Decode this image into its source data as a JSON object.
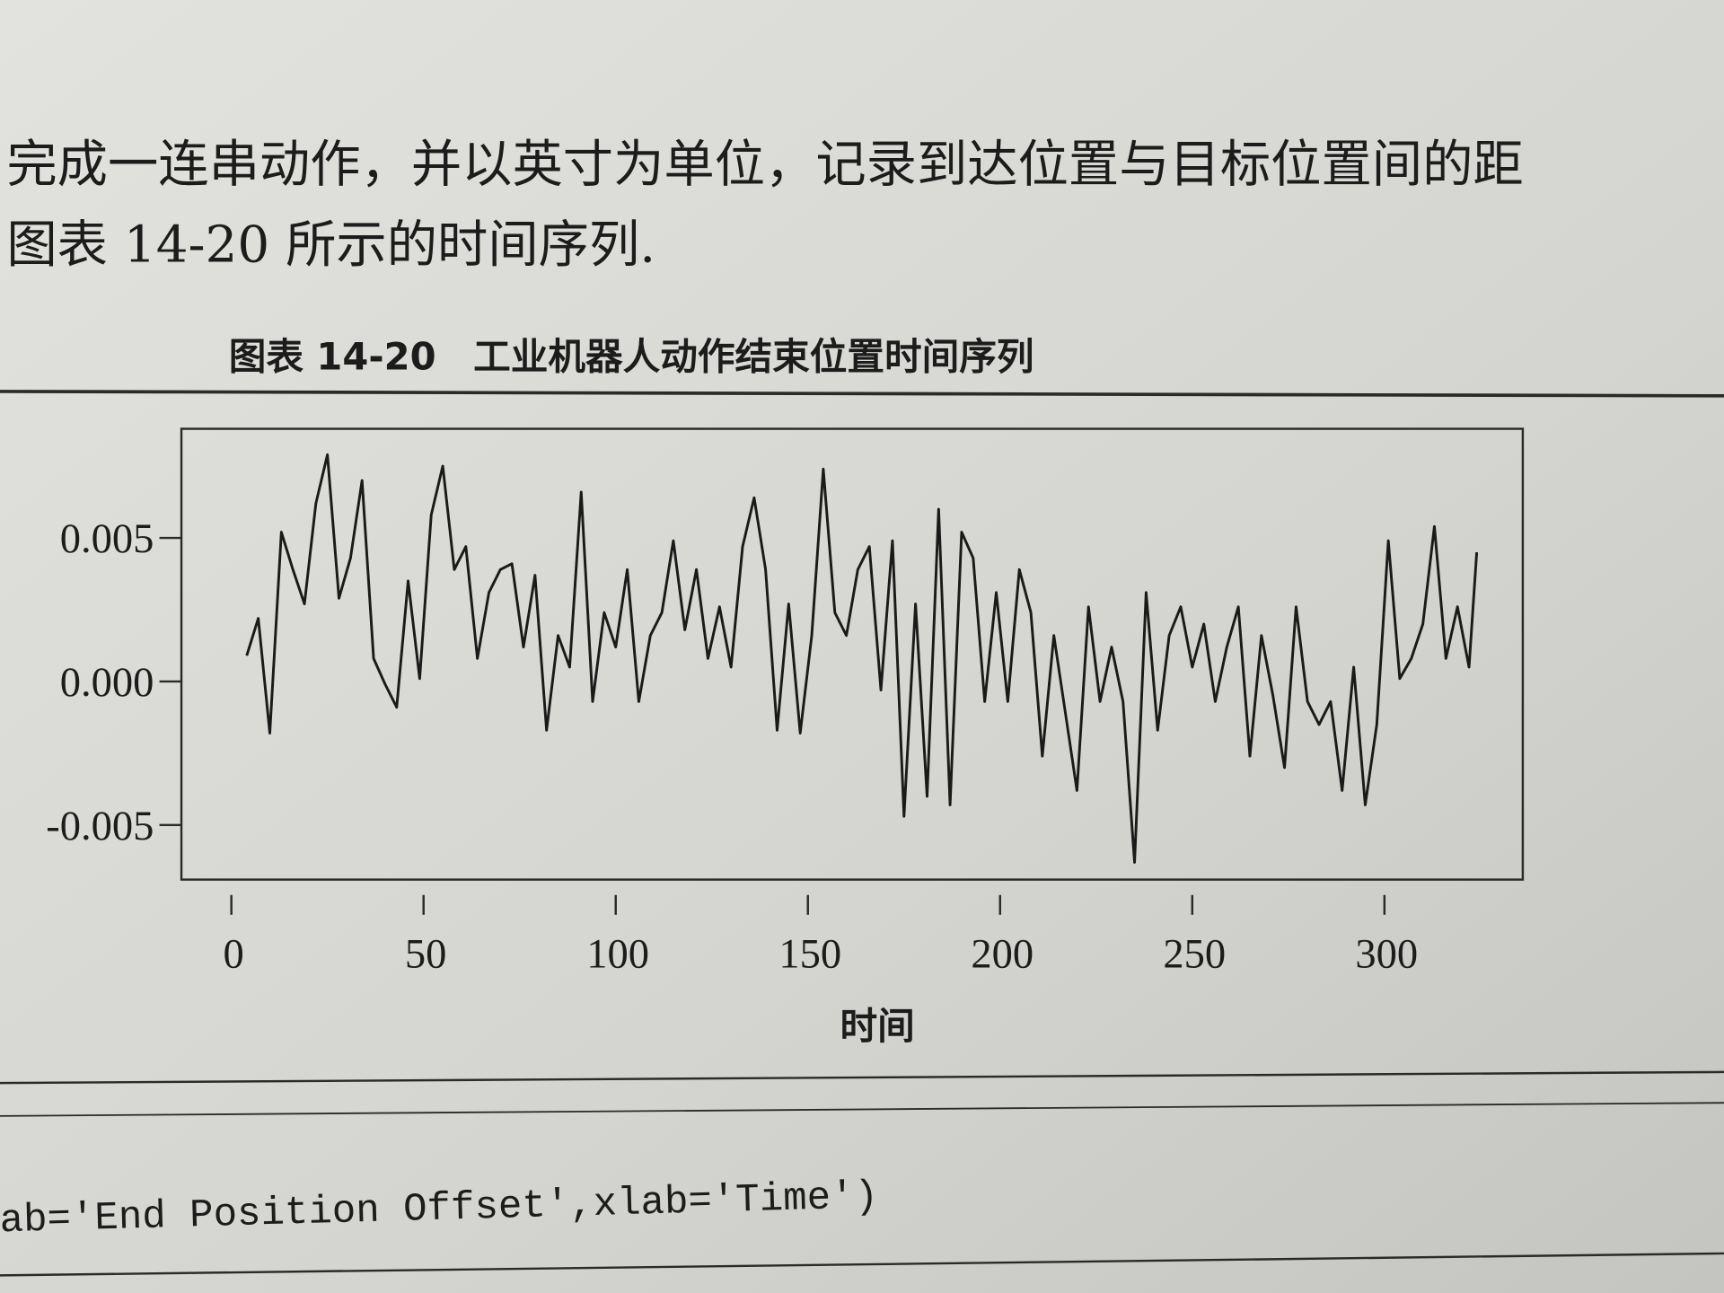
{
  "text": {
    "line1": "完成一连串动作，并以英寸为单位，记录到达位置与目标位置间的距",
    "line2": "图表 14-20 所示的时间序列."
  },
  "chart_data": {
    "type": "line",
    "title": "图表 14-20　工业机器人动作结束位置时间序列",
    "x_label": "时间",
    "color": "#1a1a1a",
    "x": [
      4,
      7,
      10,
      13,
      16,
      19,
      22,
      25,
      28,
      31,
      34,
      37,
      40,
      43,
      46,
      49,
      52,
      55,
      58,
      61,
      64,
      67,
      70,
      73,
      76,
      79,
      82,
      85,
      88,
      91,
      94,
      97,
      100,
      103,
      106,
      109,
      112,
      115,
      118,
      121,
      124,
      127,
      130,
      133,
      136,
      139,
      142,
      145,
      148,
      151,
      154,
      157,
      160,
      163,
      166,
      169,
      172,
      175,
      178,
      181,
      184,
      187,
      190,
      193,
      196,
      199,
      202,
      205,
      208,
      211,
      214,
      217,
      220,
      223,
      226,
      229,
      232,
      235,
      238,
      241,
      244,
      247,
      250,
      253,
      256,
      259,
      262,
      265,
      268,
      271,
      274,
      277,
      280,
      283,
      286,
      289,
      292,
      295,
      298,
      301,
      304,
      307,
      310,
      313,
      316,
      319,
      322,
      324
    ],
    "values": [
      0.0009,
      0.0022,
      -0.0018,
      0.0052,
      0.0039,
      0.0027,
      0.0062,
      0.0079,
      0.0029,
      0.0043,
      0.007,
      0.0008,
      -0.0001,
      -0.0009,
      0.0035,
      0.0001,
      0.0058,
      0.0075,
      0.0039,
      0.0047,
      0.0008,
      0.0031,
      0.0039,
      0.0041,
      0.0012,
      0.0037,
      -0.0017,
      0.0016,
      0.0005,
      0.0066,
      -0.0007,
      0.0024,
      0.0012,
      0.0039,
      -0.0007,
      0.0016,
      0.0024,
      0.0049,
      0.0018,
      0.0039,
      0.0008,
      0.0026,
      0.0005,
      0.0047,
      0.0064,
      0.0039,
      -0.0017,
      0.0027,
      -0.0018,
      0.0016,
      0.0074,
      0.0024,
      0.0016,
      0.0039,
      0.0047,
      -0.0003,
      0.0049,
      -0.0047,
      0.0027,
      -0.004,
      0.006,
      -0.0043,
      0.0052,
      0.0043,
      -0.0007,
      0.0031,
      -0.0007,
      0.0039,
      0.0024,
      -0.0026,
      0.0016,
      -0.0011,
      -0.0038,
      0.0026,
      -0.0007,
      0.0012,
      -0.0007,
      -0.0063,
      0.0031,
      -0.0017,
      0.0016,
      0.0026,
      0.0005,
      0.002,
      -0.0007,
      0.0012,
      0.0026,
      -0.0026,
      0.0016,
      -0.0005,
      -0.003,
      0.0026,
      -0.0007,
      -0.0015,
      -0.0007,
      -0.0038,
      0.0005,
      -0.0043,
      -0.0015,
      0.0049,
      0.0001,
      0.0008,
      0.002,
      0.0054,
      0.0008,
      0.0026,
      0.0005,
      0.0045
    ],
    "xlim": [
      -13,
      336
    ],
    "ylim": [
      -0.0069,
      0.0088
    ],
    "xticks": [
      0,
      50,
      100,
      150,
      200,
      250,
      300
    ],
    "yticks": [
      0.005,
      {
        "value": 0,
        "label": "0.000"
      },
      -0.005
    ]
  },
  "code": "ab='End Position Offset',xlab='Time')"
}
